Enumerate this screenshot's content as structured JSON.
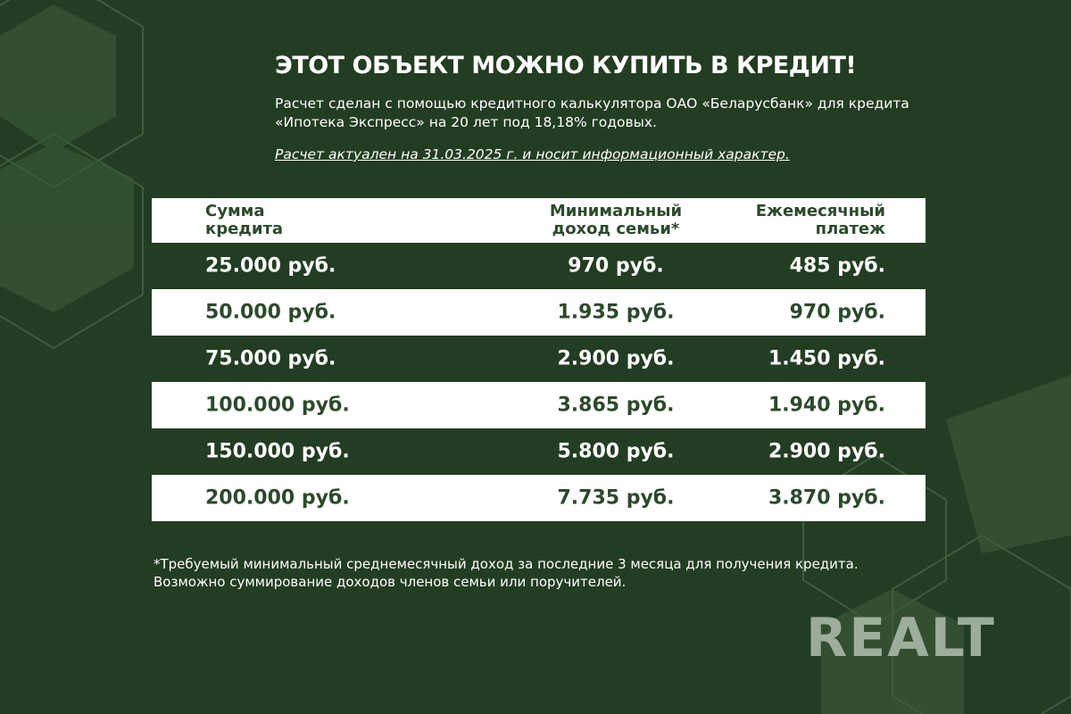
{
  "title": "ЭТОТ ОБЪЕКТ МОЖНО КУПИТЬ В КРЕДИТ!",
  "description": "Расчет сделан с помощью кредитного калькулятора ОАО «Беларусбанк» для кредита «Ипотека Экспресс» на 20 лет под 18,18% годовых.",
  "note": "Расчет актуален на 31.03.2025 г. и носит информационный характер.",
  "table": {
    "headers": [
      "Сумма кредита",
      "Минимальный доход семьи*",
      "Ежемесячный платеж"
    ],
    "rows": [
      [
        "25.000 руб.",
        "970 руб.",
        "485 руб."
      ],
      [
        "50.000 руб.",
        "1.935 руб.",
        "970 руб."
      ],
      [
        "75.000 руб.",
        "2.900 руб.",
        "1.450 руб."
      ],
      [
        "100.000 руб.",
        "3.865 руб.",
        "1.940 руб."
      ],
      [
        "150.000 руб.",
        "5.800 руб.",
        "2.900 руб."
      ],
      [
        "200.000 руб.",
        "7.735 руб.",
        "3.870 руб."
      ]
    ]
  },
  "footnote": "*Требуемый минимальный среднемесячный доход за последние 3 месяца для получения кредита. Возможно суммирование доходов членов семьи или поручителей.",
  "logo": "REALT",
  "colors": {
    "background": "#233d22",
    "accent_text": "#2c4a2c",
    "light_row": "#ffffff"
  }
}
